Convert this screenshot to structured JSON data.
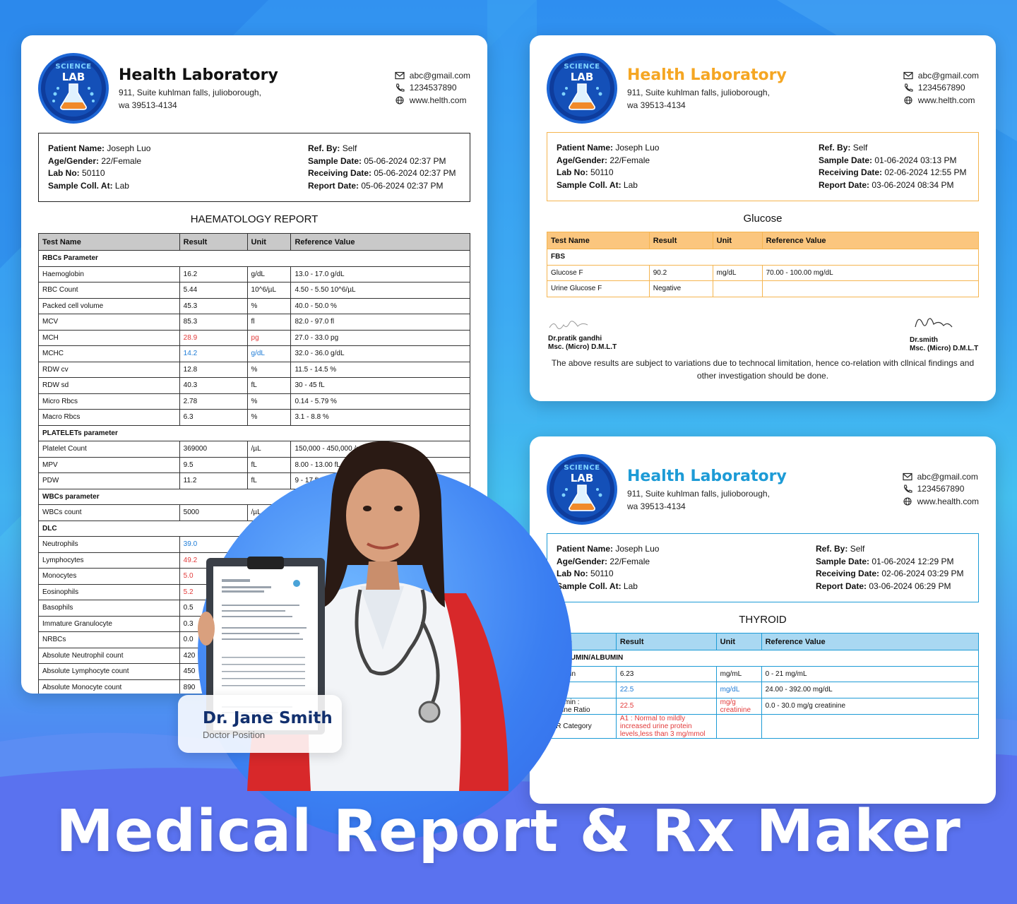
{
  "lab": {
    "logo_top": "SCIENCE",
    "logo_main": "LAB",
    "name": "Health Laboratory",
    "address_line1": "911, Suite kuhlman falls, julioborough,",
    "address_line2": "wa 39513-4134",
    "email": "abc@gmail.com"
  },
  "card_a": {
    "phone": "1234537890",
    "website": "www.helth.com",
    "patient": {
      "name_label": "Patient Name:",
      "name": "Joseph Luo",
      "age_label": "Age/Gender:",
      "age": "22/Female",
      "lab_label": "Lab No:",
      "lab_no": "50110",
      "coll_label": "Sample Coll. At:",
      "coll": "Lab",
      "ref_label": "Ref. By:",
      "ref": "Self",
      "sample_label": "Sample Date:",
      "sample_date": "05-06-2024 02:37 PM",
      "receiving_label": "Receiving Date:",
      "receiving_date": "05-06-2024 02:37 PM",
      "report_label": "Report Date:",
      "report_date": "05-06-2024 02:37 PM"
    },
    "report_title": "HAEMATOLOGY REPORT",
    "headers": [
      "Test Name",
      "Result",
      "Unit",
      "Reference Value"
    ],
    "rows": [
      {
        "section": "RBCs Parameter"
      },
      {
        "name": "Haemoglobin",
        "result": "16.2",
        "unit": "g/dL",
        "ref": "13.0 - 17.0 g/dL"
      },
      {
        "name": "RBC Count",
        "result": "5.44",
        "unit": "10^6/µL",
        "ref": "4.50 - 5.50 10^6/µL"
      },
      {
        "name": "Packed cell volume",
        "result": "45.3",
        "unit": "%",
        "ref": "40.0 - 50.0 %"
      },
      {
        "name": "MCV",
        "result": "85.3",
        "unit": "fl",
        "ref": "82.0 - 97.0 fl"
      },
      {
        "name": "MCH",
        "result": "28.9",
        "unit": "pg",
        "ref": "27.0 - 33.0 pg",
        "flag": "red"
      },
      {
        "name": "MCHC",
        "result": "14.2",
        "unit": "g/dL",
        "ref": "32.0 - 36.0 g/dL",
        "flag": "blue"
      },
      {
        "name": "RDW cv",
        "result": "12.8",
        "unit": "%",
        "ref": "11.5 - 14.5 %"
      },
      {
        "name": "RDW sd",
        "result": "40.3",
        "unit": "fL",
        "ref": "30 - 45 fL"
      },
      {
        "name": "Micro Rbcs",
        "result": "2.78",
        "unit": "%",
        "ref": "0.14 - 5.79 %"
      },
      {
        "name": "Macro Rbcs",
        "result": "6.3",
        "unit": "%",
        "ref": "3.1 - 8.8 %"
      },
      {
        "section": "PLATELETs parameter"
      },
      {
        "name": "Platelet Count",
        "result": "369000",
        "unit": "/µL",
        "ref": "150,000 - 450,000 /µL"
      },
      {
        "name": "MPV",
        "result": "9.5",
        "unit": "fL",
        "ref": "8.00 - 13.00 fL"
      },
      {
        "name": "PDW",
        "result": "11.2",
        "unit": "fL",
        "ref": "9 - 17 fL"
      },
      {
        "section": "WBCs parameter"
      },
      {
        "name": "WBCs count",
        "result": "5000",
        "unit": "/µL",
        "ref": ""
      },
      {
        "section": "DLC"
      },
      {
        "name": "Neutrophils",
        "result": "39.0",
        "unit": "",
        "ref": "",
        "flag": "blue"
      },
      {
        "name": "Lymphocytes",
        "result": "49.2",
        "unit": "",
        "ref": "",
        "flag": "red"
      },
      {
        "name": "Monocytes",
        "result": "5.0",
        "unit": "",
        "ref": "",
        "flag": "red"
      },
      {
        "name": "Eosinophils",
        "result": "5.2",
        "unit": "",
        "ref": "",
        "flag": "red"
      },
      {
        "name": "Basophils",
        "result": "0.5",
        "unit": "",
        "ref": ""
      },
      {
        "name": "Immature Granulocyte",
        "result": "0.3",
        "unit": "",
        "ref": ""
      },
      {
        "name": "NRBCs",
        "result": "0.0",
        "unit": "",
        "ref": ""
      },
      {
        "name": "Absolute Neutrophil count",
        "result": "420",
        "unit": "",
        "ref": ""
      },
      {
        "name": "Absolute Lymphocyte count",
        "result": "450",
        "unit": "",
        "ref": ""
      },
      {
        "name": "Absolute Monocyte count",
        "result": "890",
        "unit": "",
        "ref": ""
      }
    ]
  },
  "card_b": {
    "phone": "1234567890",
    "website": "www.helth.com",
    "patient": {
      "name": "Joseph Luo",
      "age": "22/Female",
      "lab_no": "50110",
      "coll": "Lab",
      "ref": "Self",
      "sample_date": "01-06-2024 03:13 PM",
      "receiving_date": "02-06-2024 12:55 PM",
      "report_date": "03-06-2024 08:34 PM"
    },
    "report_title": "Glucose",
    "headers": [
      "Test Name",
      "Result",
      "Unit",
      "Reference Value"
    ],
    "rows": [
      {
        "section": "FBS"
      },
      {
        "name": "Glucose F",
        "result": "90.2",
        "unit": "mg/dL",
        "ref": "70.00 - 100.00 mg/dL"
      },
      {
        "name": "Urine Glucose F",
        "result": "Negative",
        "unit": "",
        "ref": ""
      }
    ],
    "sign_left_name": "Dr.pratik gandhi",
    "sign_left_degree": "Msc. (Micro) D.M.L.T",
    "sign_right_name": "Dr.smith",
    "sign_right_degree": "Msc. (Micro) D.M.L.T",
    "disclaimer": "The above results are subject to variations due to technocal limitation, hence co-relation with cllnical findings and other investigation should be done."
  },
  "card_c": {
    "phone": "1234567890",
    "website": "www.health.com",
    "patient": {
      "name": "Joseph Luo",
      "age": "22/Female",
      "lab_no": "50110",
      "coll": "Lab",
      "ref": "Self",
      "sample_date": "01-06-2024 12:29 PM",
      "receiving_date": "02-06-2024 03:29 PM",
      "report_date": "03-06-2024 06:29 PM"
    },
    "report_title": "THYROID",
    "headers": [
      "Name",
      "Result",
      "Unit",
      "Reference Value"
    ],
    "rows": [
      {
        "section": "DALBUMIN/ALBUMIN"
      },
      {
        "name": "albumin",
        "result": "6.23",
        "unit": "mg/mL",
        "ref": "0 - 21 mg/mL"
      },
      {
        "name": "inine",
        "result": "22.5",
        "unit": "mg/dL",
        "ref": "24.00 - 392.00 mg/dL",
        "flag": "blue"
      },
      {
        "name": "albumin :\natinine Ratio",
        "result": "22.5",
        "unit": "mg/g\ncreatinine",
        "ref": "0.0 - 30.0 mg/g creatinine",
        "flag": "red"
      },
      {
        "name": "CR Category",
        "result": "A1 : Normal to mildly\nincreased urine protein\nlevels,less than 3 mg/mmol",
        "unit": "",
        "ref": "",
        "flag": "red"
      }
    ]
  },
  "badge": {
    "name": "Dr. Jane Smith",
    "position": "Doctor Position"
  },
  "headline": "Medical Report & Rx Maker",
  "colors": {
    "orange_accent": "#f5a623",
    "blue_accent": "#1d9bd6",
    "flag_red": "#e23b3b",
    "flag_blue": "#1d7bd6"
  }
}
